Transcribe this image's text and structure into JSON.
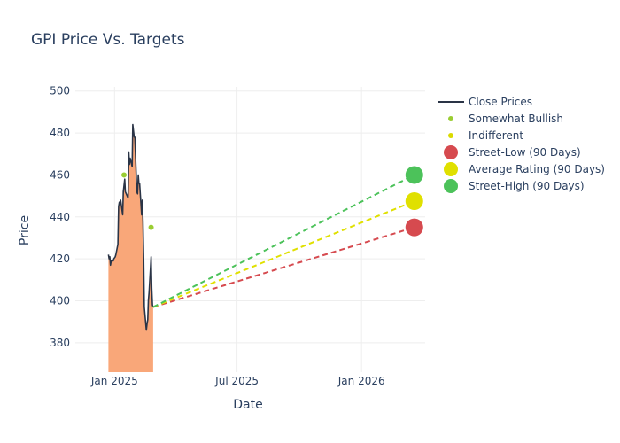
{
  "chart_data": {
    "type": "line",
    "title": "GPI Price Vs. Targets",
    "xlabel": "Date",
    "ylabel": "Price",
    "xlim": [
      "2024-11-04",
      "2026-04-05"
    ],
    "ylim": [
      366,
      502
    ],
    "y_ticks": [
      380,
      400,
      420,
      440,
      460,
      480,
      500
    ],
    "x_ticks": [
      {
        "date": "2025-01-01",
        "label": "Jan 2025"
      },
      {
        "date": "2025-07-01",
        "label": "Jul 2025"
      },
      {
        "date": "2026-01-01",
        "label": "Jan 2026"
      }
    ],
    "grid": true,
    "legend_position": "right",
    "colors": {
      "close": "#2a3446",
      "fill": "#f9a779",
      "somewhat_bullish": "#9acd32",
      "indifferent": "#dada00",
      "street_low": "#d64a4f",
      "average": "#e0e000",
      "street_high": "#4cc25a",
      "grid": "#eeeeee",
      "text": "#2a3f5f"
    },
    "series": [
      {
        "name": "Close Prices",
        "points": [
          [
            "2024-12-23",
            422
          ],
          [
            "2024-12-24",
            420
          ],
          [
            "2024-12-25",
            421
          ],
          [
            "2024-12-26",
            417
          ],
          [
            "2024-12-27",
            419
          ],
          [
            "2024-12-30",
            419
          ],
          [
            "2024-12-31",
            420
          ],
          [
            "2025-01-02",
            421
          ],
          [
            "2025-01-03",
            422
          ],
          [
            "2025-01-06",
            427
          ],
          [
            "2025-01-07",
            445
          ],
          [
            "2025-01-08",
            447
          ],
          [
            "2025-01-09",
            446
          ],
          [
            "2025-01-10",
            448
          ],
          [
            "2025-01-13",
            441
          ],
          [
            "2025-01-14",
            452
          ],
          [
            "2025-01-15",
            455
          ],
          [
            "2025-01-16",
            458
          ],
          [
            "2025-01-17",
            452
          ],
          [
            "2025-01-21",
            449
          ],
          [
            "2025-01-22",
            471
          ],
          [
            "2025-01-23",
            465
          ],
          [
            "2025-01-24",
            468
          ],
          [
            "2025-01-27",
            464
          ],
          [
            "2025-01-28",
            484
          ],
          [
            "2025-01-29",
            481
          ],
          [
            "2025-01-30",
            478
          ],
          [
            "2025-01-31",
            478
          ],
          [
            "2025-02-03",
            452
          ],
          [
            "2025-02-04",
            451
          ],
          [
            "2025-02-05",
            460
          ],
          [
            "2025-02-06",
            456
          ],
          [
            "2025-02-07",
            456
          ],
          [
            "2025-02-10",
            441
          ],
          [
            "2025-02-11",
            448
          ],
          [
            "2025-02-12",
            438
          ],
          [
            "2025-02-13",
            420
          ],
          [
            "2025-02-14",
            397
          ],
          [
            "2025-02-17",
            386
          ],
          [
            "2025-02-18",
            389
          ],
          [
            "2025-02-19",
            391
          ],
          [
            "2025-02-20",
            400
          ],
          [
            "2025-02-21",
            404
          ],
          [
            "2025-02-24",
            421
          ],
          [
            "2025-02-25",
            406
          ],
          [
            "2025-02-26",
            398
          ],
          [
            "2025-02-27",
            397
          ]
        ]
      },
      {
        "name": "Somewhat Bullish",
        "points": [
          [
            "2025-01-15",
            460
          ],
          [
            "2025-02-24",
            435
          ]
        ]
      },
      {
        "name": "Indifferent",
        "points": []
      },
      {
        "name": "Street-Low (90 Days)",
        "start": [
          "2025-02-27",
          397
        ],
        "end": [
          "2026-03-20",
          435
        ]
      },
      {
        "name": "Average Rating (90 Days)",
        "start": [
          "2025-02-27",
          397
        ],
        "end": [
          "2026-03-20",
          447.5
        ]
      },
      {
        "name": "Street-High (90 Days)",
        "start": [
          "2025-02-27",
          397
        ],
        "end": [
          "2026-03-20",
          460
        ]
      }
    ]
  }
}
